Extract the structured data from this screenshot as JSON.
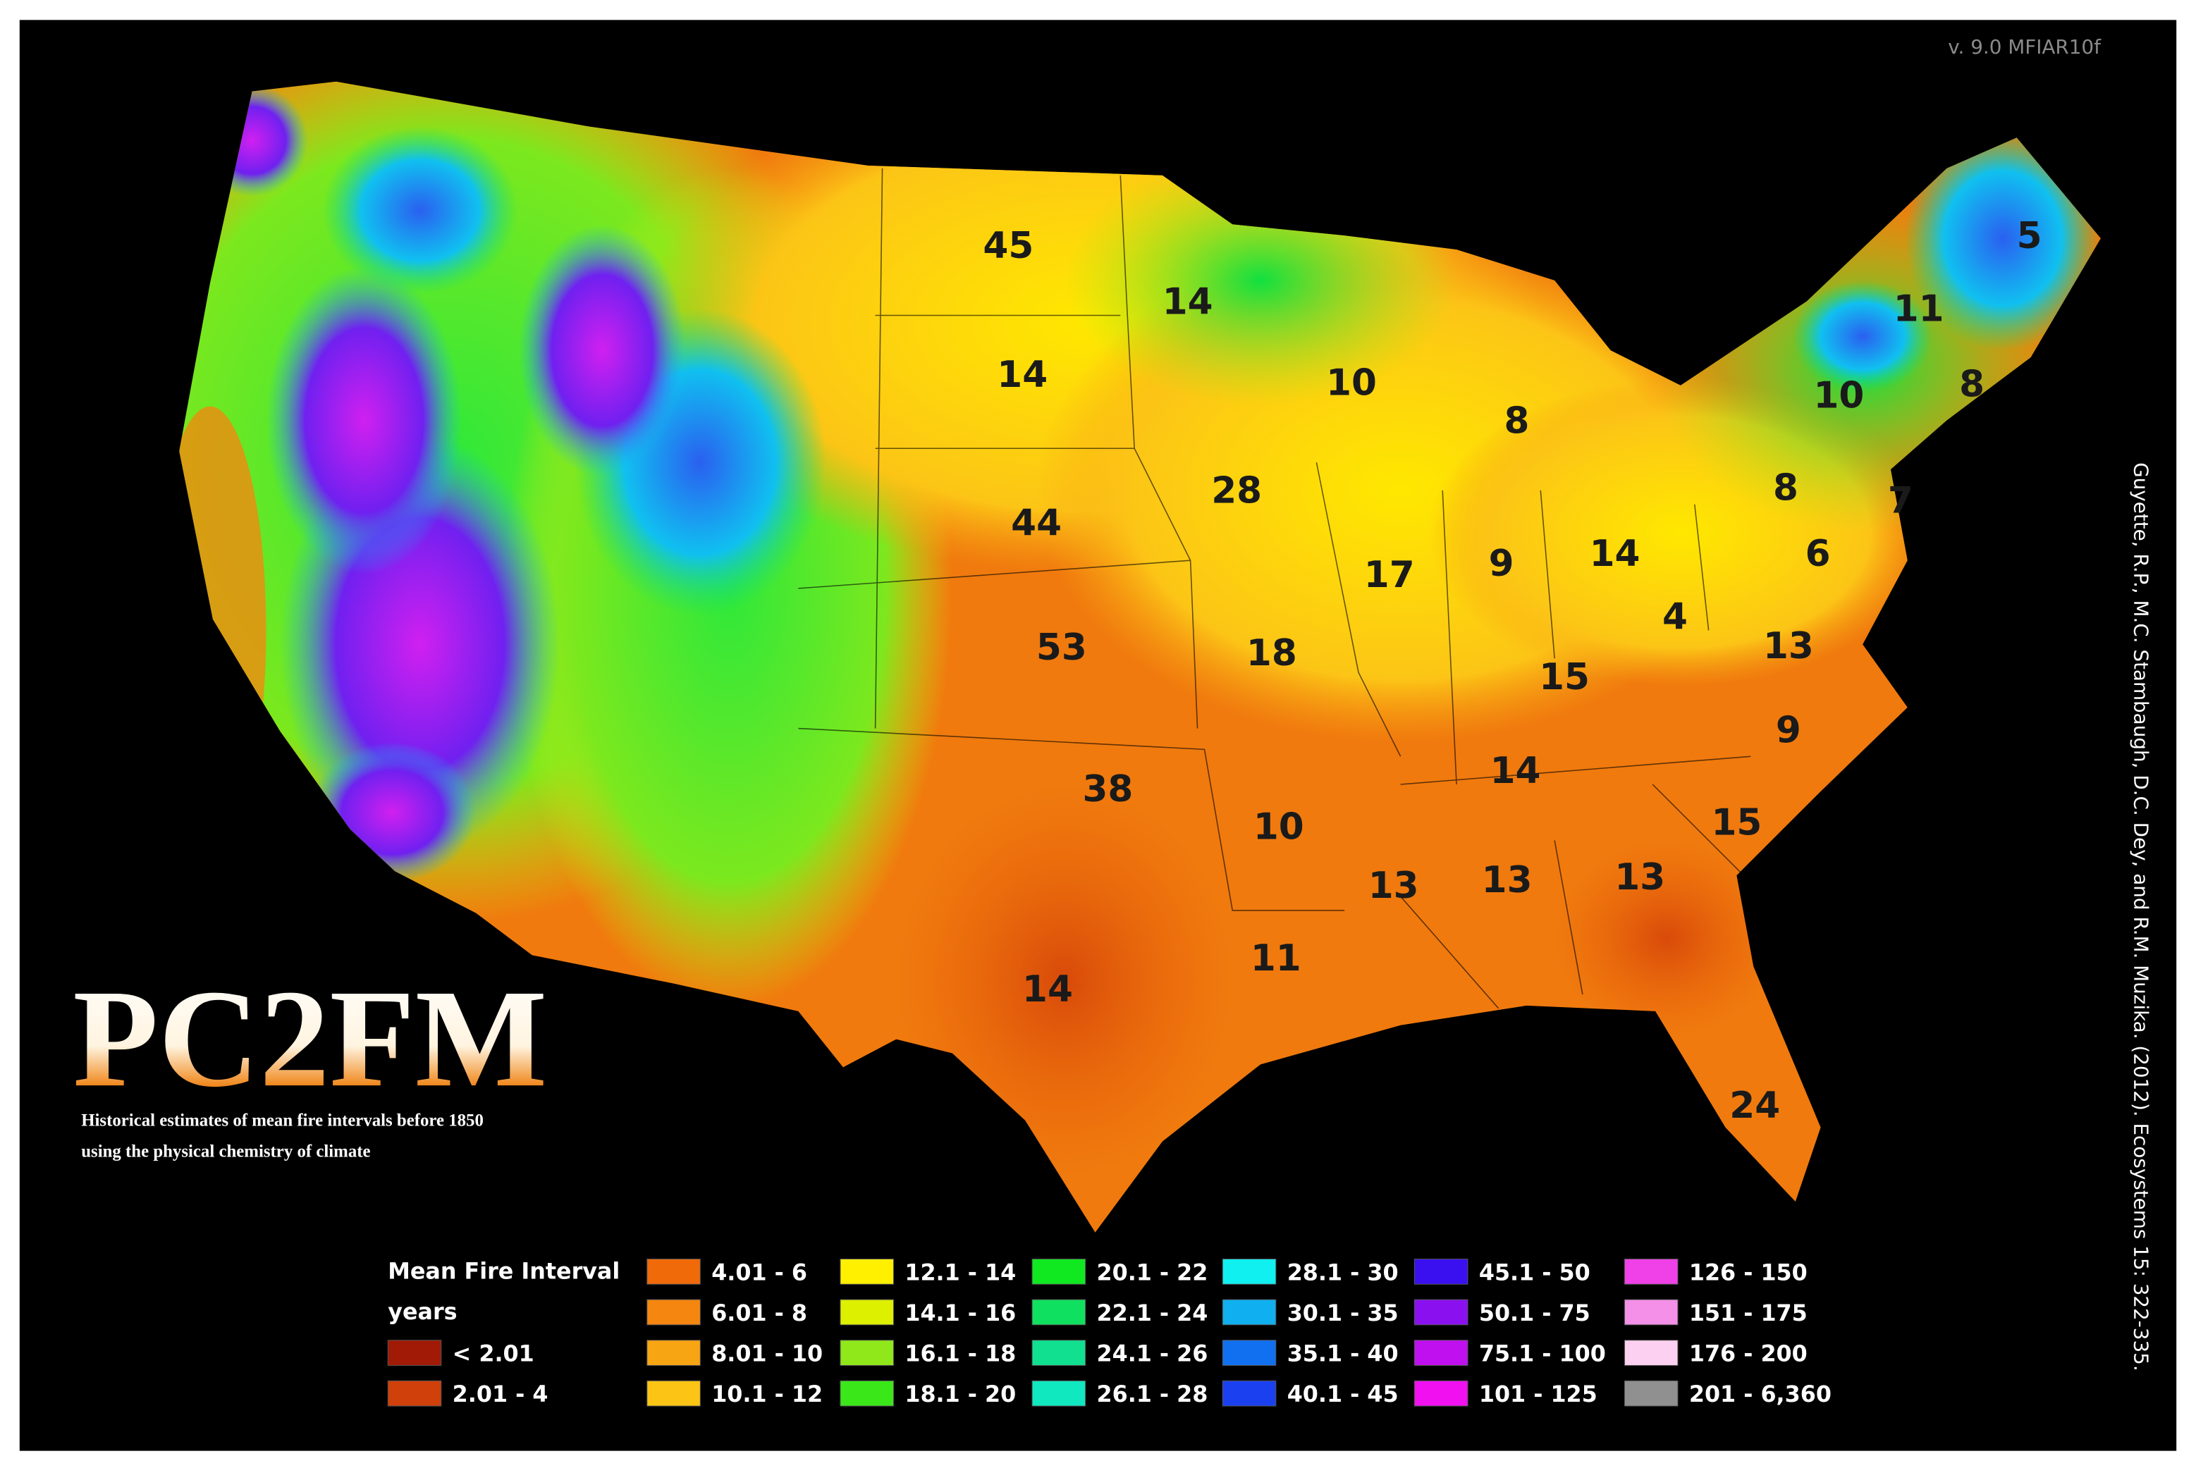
{
  "header": {
    "version": "v. 9.0 MFIAR10f",
    "title": "PC2FM",
    "subtitle": [
      "Historical estimates of mean fire intervals before 1850",
      "using the physical chemistry of climate"
    ],
    "citation": "Guyette, R.P., M.C. Stambaugh, D.C. Dey, and R.M. Muzika. (2012). Ecosystems 15: 322-335."
  },
  "map": {
    "labels": [
      "45",
      "14",
      "10",
      "14",
      "8",
      "28",
      "44",
      "17",
      "9",
      "14",
      "53",
      "18",
      "15",
      "4",
      "13",
      "6",
      "8",
      "7",
      "10",
      "8",
      "11",
      "5",
      "9",
      "14",
      "38",
      "10",
      "15",
      "13",
      "13",
      "13",
      "11",
      "14",
      "24"
    ]
  },
  "legend": {
    "title": "Mean Fire Interval",
    "units": "years",
    "entries": [
      {
        "label": "< 2.01",
        "color": "#a01a05"
      },
      {
        "label": "2.01 - 4",
        "color": "#d0400a"
      },
      {
        "label": "4.01 - 6",
        "color": "#f06a0a"
      },
      {
        "label": "6.01 - 8",
        "color": "#f5860f"
      },
      {
        "label": "8.01 - 10",
        "color": "#f8a514"
      },
      {
        "label": "10.1 - 12",
        "color": "#fcc516"
      },
      {
        "label": "12.1 - 14",
        "color": "#fff000"
      },
      {
        "label": "14.1 - 16",
        "color": "#ddf000"
      },
      {
        "label": "16.1 - 18",
        "color": "#90e81a"
      },
      {
        "label": "18.1 - 20",
        "color": "#3ae81a"
      },
      {
        "label": "20.1 - 22",
        "color": "#10e820"
      },
      {
        "label": "22.1 - 24",
        "color": "#10e060"
      },
      {
        "label": "24.1 - 26",
        "color": "#10e090"
      },
      {
        "label": "26.1 - 28",
        "color": "#10e8c0"
      },
      {
        "label": "28.1 - 30",
        "color": "#10f0f0"
      },
      {
        "label": "30.1 - 35",
        "color": "#10b0f0"
      },
      {
        "label": "35.1 - 40",
        "color": "#1070f0"
      },
      {
        "label": "40.1 - 45",
        "color": "#1a40f0"
      },
      {
        "label": "45.1 - 50",
        "color": "#3a10f0"
      },
      {
        "label": "50.1 - 75",
        "color": "#8a10f0"
      },
      {
        "label": "75.1 - 100",
        "color": "#c010f0"
      },
      {
        "label": "101 - 125",
        "color": "#f010f0"
      },
      {
        "label": "126 - 150",
        "color": "#f040e8"
      },
      {
        "label": "151 - 175",
        "color": "#f590e8"
      },
      {
        "label": "176 - 200",
        "color": "#fcd0f0"
      },
      {
        "label": "201 - 6,360",
        "color": "#909090"
      }
    ]
  }
}
